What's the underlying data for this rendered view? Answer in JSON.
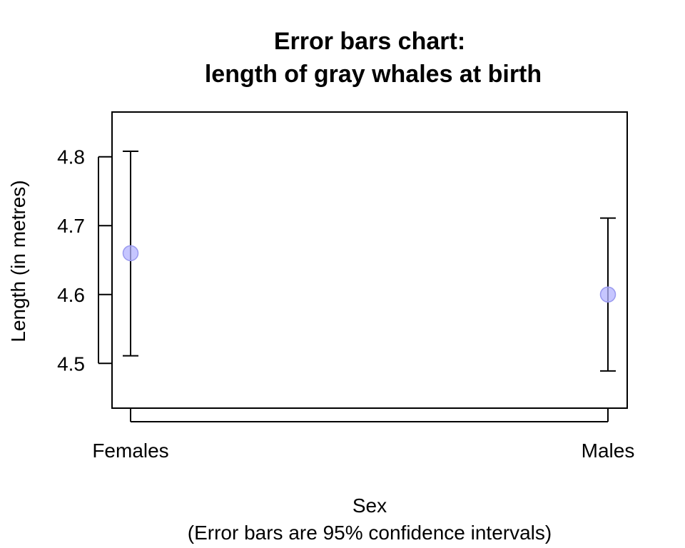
{
  "chart_data": {
    "type": "scatter",
    "title": [
      "Error bars chart:",
      "length of gray whales at birth"
    ],
    "xlabel": [
      "Sex",
      "(Error bars are 95% confidence intervals)"
    ],
    "ylabel": "Length (in metres)",
    "categories": [
      "Females",
      "Males"
    ],
    "points": [
      {
        "category": "Females",
        "mean": 4.66,
        "lower": 4.511,
        "upper": 4.808
      },
      {
        "category": "Males",
        "mean": 4.6,
        "lower": 4.489,
        "upper": 4.711
      }
    ],
    "yticks": [
      4.5,
      4.6,
      4.7,
      4.8
    ],
    "ytick_labels": [
      "4.5",
      "4.6",
      "4.7",
      "4.8"
    ],
    "ylim": [
      4.435,
      4.865
    ],
    "grid": false,
    "legend": "none",
    "colors": {
      "point_fill": "#b3b3ff",
      "error_bar": "#000000"
    }
  }
}
